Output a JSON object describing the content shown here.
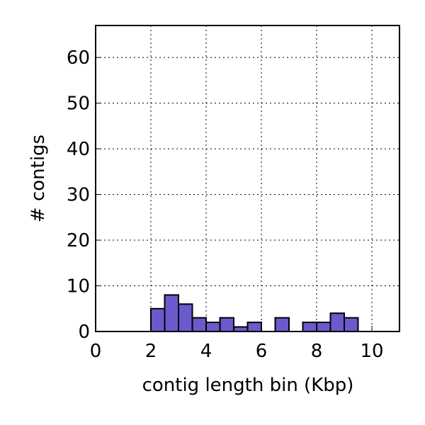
{
  "chart_data": {
    "type": "histogram",
    "x_label": "contig length bin (Kbp)",
    "y_label": "# contigs",
    "bins": [
      0,
      0.5,
      1,
      1.5,
      2,
      2.5,
      3,
      3.5,
      4,
      4.5,
      5,
      5.5,
      6,
      6.5,
      7,
      7.5,
      8,
      8.5,
      9,
      9.5,
      10,
      10.5,
      11
    ],
    "counts": [
      0,
      0,
      0,
      0,
      5,
      8,
      6,
      3,
      2,
      3,
      1,
      2,
      0,
      3,
      0,
      2,
      2,
      4,
      3,
      0,
      0,
      0
    ],
    "color": "#6a5acd",
    "xlim": [
      0,
      11
    ],
    "xticks": [
      0,
      2,
      4,
      6,
      8,
      10
    ],
    "ylim": [
      0,
      67
    ],
    "yticks": [
      0,
      10,
      20,
      30,
      40,
      50,
      60
    ],
    "grid": true
  }
}
